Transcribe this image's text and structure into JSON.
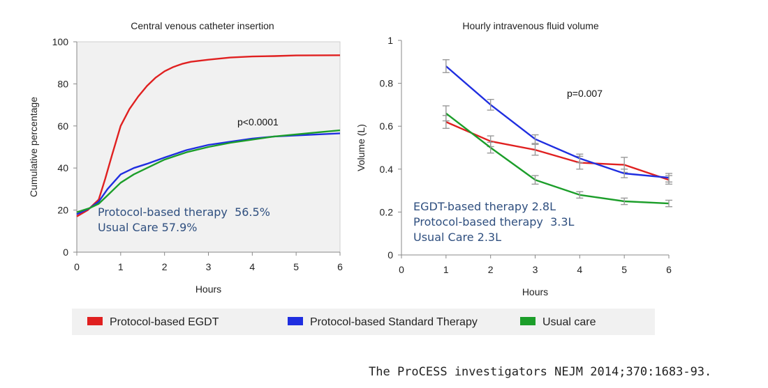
{
  "chart_data": [
    {
      "type": "line",
      "title": "Central venous catheter insertion",
      "xlabel": "Hours",
      "ylabel": "Cumulative percentage",
      "xlim": [
        0,
        6
      ],
      "ylim": [
        0,
        100
      ],
      "xticks": [
        "0",
        "1",
        "2",
        "3",
        "4",
        "5",
        "6"
      ],
      "yticks": [
        "0",
        "20",
        "40",
        "60",
        "80",
        "100"
      ],
      "grid": false,
      "annotations": [
        "p<0.0001"
      ],
      "text_lines": [
        "Protocol-based therapy  56.5%",
        "Usual Care 57.9%"
      ],
      "series": [
        {
          "name": "Protocol-based EGDT",
          "color": "#e02020",
          "x": [
            0,
            0.25,
            0.5,
            0.65,
            0.8,
            1.0,
            1.2,
            1.4,
            1.6,
            1.8,
            2.0,
            2.2,
            2.4,
            2.6,
            2.8,
            3.0,
            3.5,
            4.0,
            4.5,
            5.0,
            6.0
          ],
          "y": [
            17,
            20,
            25,
            35,
            46,
            60,
            68,
            74,
            79,
            83,
            86,
            88,
            89.5,
            90.5,
            91,
            91.5,
            92.5,
            93,
            93.2,
            93.5,
            93.6
          ]
        },
        {
          "name": "Protocol-based Standard Therapy",
          "color": "#1f2ee0",
          "x": [
            0,
            0.3,
            0.5,
            0.7,
            1.0,
            1.3,
            1.6,
            2.0,
            2.5,
            3.0,
            3.5,
            4.0,
            4.5,
            5.0,
            5.5,
            6.0
          ],
          "y": [
            18,
            21,
            24,
            30,
            37,
            40,
            42,
            45,
            48.5,
            51,
            52.5,
            54,
            55,
            55.5,
            56,
            56.5
          ]
        },
        {
          "name": "Usual care",
          "color": "#1c9e2a",
          "x": [
            0,
            0.3,
            0.5,
            0.7,
            1.0,
            1.3,
            1.6,
            2.0,
            2.5,
            3.0,
            3.5,
            4.0,
            4.5,
            5.0,
            5.5,
            6.0
          ],
          "y": [
            19,
            21,
            23,
            27,
            33,
            37,
            40,
            44,
            47.5,
            50,
            52,
            53.5,
            55,
            56,
            57,
            57.9
          ]
        }
      ]
    },
    {
      "type": "line",
      "title": "Hourly intravenous fluid volume",
      "xlabel": "Hours",
      "ylabel": "Volume (L)",
      "xlim": [
        0,
        6
      ],
      "ylim": [
        0,
        1
      ],
      "xticks": [
        "0",
        "1",
        "2",
        "3",
        "4",
        "5",
        "6"
      ],
      "yticks": [
        "0",
        "0.2",
        "0.4",
        "0.6",
        "0.8",
        "1"
      ],
      "grid": false,
      "annotations": [
        "p=0.007"
      ],
      "text_lines": [
        "EGDT-based therapy 2.8L",
        "Protocol-based therapy  3.3L",
        "Usual Care 2.3L"
      ],
      "x": [
        1,
        2,
        3,
        4,
        5,
        6
      ],
      "series": [
        {
          "name": "Protocol-based EGDT",
          "color": "#e02020",
          "values": [
            0.62,
            0.53,
            0.49,
            0.43,
            0.42,
            0.35
          ],
          "error": [
            0.03,
            0.025,
            0.025,
            0.03,
            0.035,
            0.02
          ]
        },
        {
          "name": "Protocol-based Standard Therapy",
          "color": "#1f2ee0",
          "values": [
            0.88,
            0.7,
            0.54,
            0.45,
            0.38,
            0.36
          ],
          "error": [
            0.03,
            0.025,
            0.02,
            0.02,
            0.02,
            0.02
          ]
        },
        {
          "name": "Usual care",
          "color": "#1c9e2a",
          "values": [
            0.66,
            0.5,
            0.35,
            0.28,
            0.25,
            0.24
          ],
          "error": [
            0.035,
            0.025,
            0.02,
            0.015,
            0.015,
            0.015
          ]
        }
      ]
    }
  ],
  "legend": {
    "items": [
      {
        "label": "Protocol-based EGDT",
        "color": "#e02020"
      },
      {
        "label": "Protocol-based Standard Therapy",
        "color": "#1f2ee0"
      },
      {
        "label": "Usual care",
        "color": "#1c9e2a"
      }
    ]
  },
  "citation": "The ProCESS investigators NEJM 2014;370:1683-93."
}
